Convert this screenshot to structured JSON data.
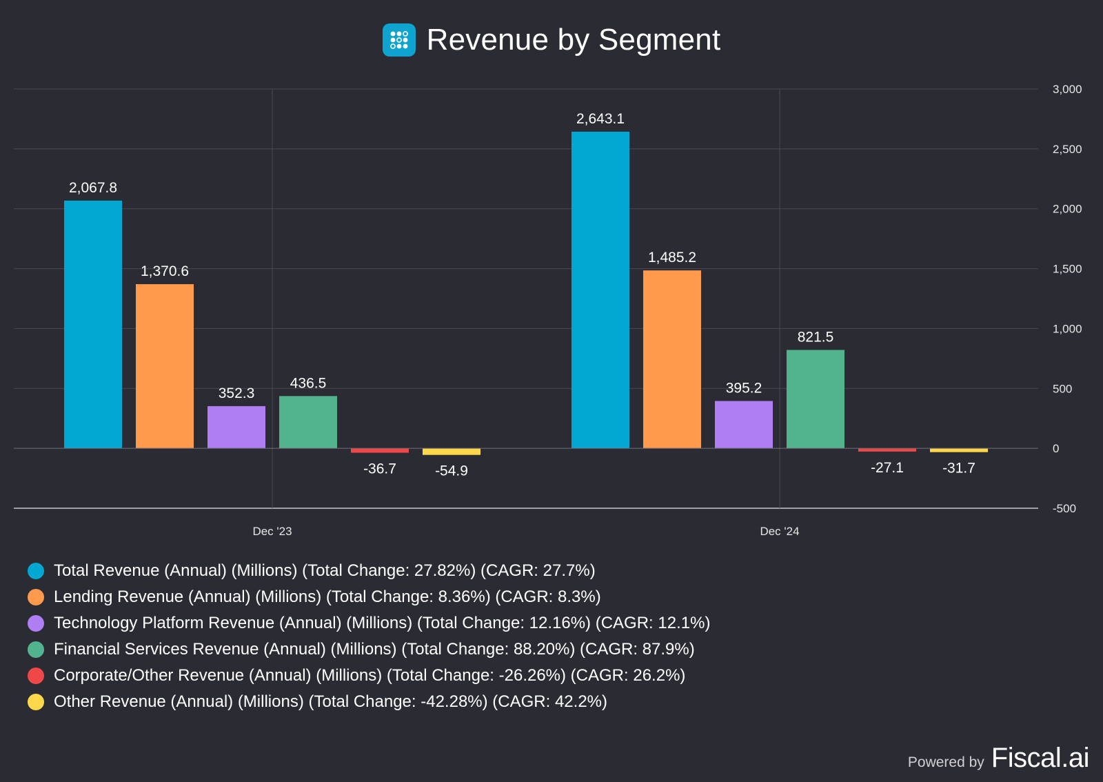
{
  "header": {
    "title": "Revenue by Segment",
    "icon": "fiscal-grid-logo-icon"
  },
  "footer": {
    "powered_by": "Powered by",
    "brand": "Fiscal.ai"
  },
  "colors": {
    "background": "#2b2c33",
    "grid": "#484953",
    "total": "#02a8d1",
    "lending": "#ff9a4d",
    "technology": "#b07ef3",
    "financial": "#52b48e",
    "corporate": "#f04848",
    "other": "#fcd84a"
  },
  "chart_data": {
    "type": "bar",
    "title": "Revenue by Segment",
    "categories": [
      "Dec '23",
      "Dec '24"
    ],
    "y_ticks": [
      "3,000",
      "2,500",
      "2,000",
      "1,500",
      "1,000",
      "500",
      "0",
      "-500"
    ],
    "ylim": [
      -500,
      3000
    ],
    "y_axis_side": "right",
    "grid": true,
    "legend_position": "bottom-left",
    "series": [
      {
        "name": "Total Revenue (Annual) (Millions) (Total Change: 27.82%) (CAGR: 27.7%)",
        "color": "#02a8d1",
        "values": [
          2067.8,
          2643.1
        ],
        "labels": [
          "2,067.8",
          "2,643.1"
        ]
      },
      {
        "name": "Lending Revenue (Annual) (Millions) (Total Change: 8.36%) (CAGR: 8.3%)",
        "color": "#ff9a4d",
        "values": [
          1370.6,
          1485.2
        ],
        "labels": [
          "1,370.6",
          "1,485.2"
        ]
      },
      {
        "name": "Technology Platform Revenue (Annual) (Millions) (Total Change: 12.16%) (CAGR: 12.1%)",
        "color": "#b07ef3",
        "values": [
          352.3,
          395.2
        ],
        "labels": [
          "352.3",
          "395.2"
        ]
      },
      {
        "name": "Financial Services Revenue (Annual) (Millions) (Total Change: 88.20%) (CAGR: 87.9%)",
        "color": "#52b48e",
        "values": [
          436.5,
          821.5
        ],
        "labels": [
          "436.5",
          "821.5"
        ]
      },
      {
        "name": "Corporate/Other Revenue (Annual) (Millions) (Total Change: -26.26%) (CAGR: 26.2%)",
        "color": "#f04848",
        "values": [
          -36.7,
          -27.1
        ],
        "labels": [
          "-36.7",
          "-27.1"
        ]
      },
      {
        "name": "Other Revenue (Annual) (Millions) (Total Change: -42.28%) (CAGR: 42.2%)",
        "color": "#fcd84a",
        "values": [
          -54.9,
          -31.7
        ],
        "labels": [
          "-54.9",
          "-31.7"
        ]
      }
    ]
  }
}
